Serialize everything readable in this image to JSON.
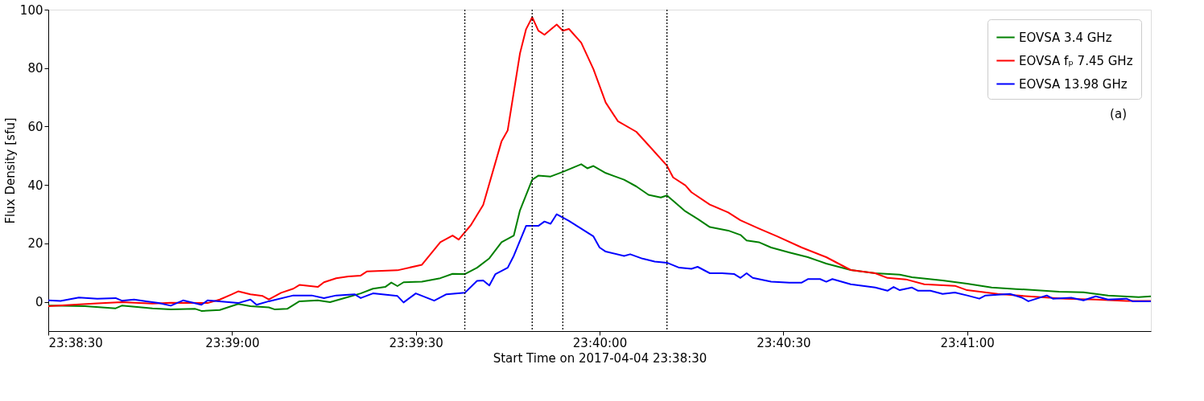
{
  "chart_data": {
    "type": "line",
    "xlabel": "Start Time on 2017-04-04 23:38:30",
    "ylabel": "Flux Density [sfu]",
    "xlim": [
      "2017-04-04T23:38:30",
      "2017-04-04T23:41:30"
    ],
    "xticks": [
      {
        "value": "2017-04-04T23:38:30",
        "label": "23:38:30"
      },
      {
        "value": "2017-04-04T23:39:00",
        "label": "23:39:00"
      },
      {
        "value": "2017-04-04T23:39:30",
        "label": "23:39:30"
      },
      {
        "value": "2017-04-04T23:40:00",
        "label": "23:40:00"
      },
      {
        "value": "2017-04-04T23:40:30",
        "label": "23:40:30"
      },
      {
        "value": "2017-04-04T23:41:00",
        "label": "23:41:00"
      }
    ],
    "ylim": [
      -10,
      100
    ],
    "yticks": [
      0,
      20,
      40,
      60,
      80,
      100
    ],
    "grid": false,
    "legend": "top right",
    "line_style": "solid",
    "annotations": [
      "(a)"
    ],
    "ref_lines": [
      {
        "axis": "x",
        "value": "2017-04-04T23:39:38",
        "color": "#000000",
        "line_style": "dotted"
      },
      {
        "axis": "x",
        "value": "2017-04-04T23:39:49",
        "color": "#000000",
        "line_style": "dotted"
      },
      {
        "axis": "x",
        "value": "2017-04-04T23:39:54",
        "color": "#000000",
        "line_style": "dotted"
      },
      {
        "axis": "x",
        "value": "2017-04-04T23:40:11",
        "color": "#000000",
        "line_style": "dotted"
      }
    ],
    "series": [
      {
        "name": "EOVSA 3.4 GHz",
        "color": "#008000",
        "x": [
          "2017-04-04T23:38:30",
          "2017-04-04T23:38:36",
          "2017-04-04T23:38:41",
          "2017-04-04T23:38:42",
          "2017-04-04T23:38:47",
          "2017-04-04T23:38:50",
          "2017-04-04T23:38:54",
          "2017-04-04T23:38:55",
          "2017-04-04T23:38:58",
          "2017-04-04T23:39:01",
          "2017-04-04T23:39:03",
          "2017-04-04T23:39:06",
          "2017-04-04T23:39:07",
          "2017-04-04T23:39:09",
          "2017-04-04T23:39:11",
          "2017-04-04T23:39:14",
          "2017-04-04T23:39:16",
          "2017-04-04T23:39:19",
          "2017-04-04T23:39:21",
          "2017-04-04T23:39:23",
          "2017-04-04T23:39:25",
          "2017-04-04T23:39:26",
          "2017-04-04T23:39:27",
          "2017-04-04T23:39:28",
          "2017-04-04T23:39:31",
          "2017-04-04T23:39:34",
          "2017-04-04T23:39:36",
          "2017-04-04T23:39:38",
          "2017-04-04T23:39:40",
          "2017-04-04T23:39:42",
          "2017-04-04T23:39:44",
          "2017-04-04T23:39:46",
          "2017-04-04T23:39:47",
          "2017-04-04T23:39:49",
          "2017-04-04T23:39:50",
          "2017-04-04T23:39:52",
          "2017-04-04T23:39:54",
          "2017-04-04T23:39:57",
          "2017-04-04T23:39:58",
          "2017-04-04T23:39:59",
          "2017-04-04T23:40:01",
          "2017-04-04T23:40:04",
          "2017-04-04T23:40:06",
          "2017-04-04T23:40:08",
          "2017-04-04T23:40:10",
          "2017-04-04T23:40:11",
          "2017-04-04T23:40:14",
          "2017-04-04T23:40:16",
          "2017-04-04T23:40:18",
          "2017-04-04T23:40:21",
          "2017-04-04T23:40:23",
          "2017-04-04T23:40:24",
          "2017-04-04T23:40:26",
          "2017-04-04T23:40:28",
          "2017-04-04T23:40:31",
          "2017-04-04T23:40:34",
          "2017-04-04T23:40:37",
          "2017-04-04T23:40:41",
          "2017-04-04T23:40:45",
          "2017-04-04T23:40:49",
          "2017-04-04T23:40:51",
          "2017-04-04T23:40:56",
          "2017-04-04T23:41:00",
          "2017-04-04T23:41:04",
          "2017-04-04T23:41:08",
          "2017-04-04T23:41:15",
          "2017-04-04T23:41:19",
          "2017-04-04T23:41:23",
          "2017-04-04T23:41:28",
          "2017-04-04T23:41:30"
        ],
        "values": [
          -1.3,
          -1.5,
          -2.2,
          -1.3,
          -2.2,
          -2.6,
          -2.4,
          -3.1,
          -2.8,
          -0.7,
          -1.5,
          -1.9,
          -2.6,
          -2.4,
          0.2,
          0.5,
          -0.1,
          1.7,
          2.9,
          4.5,
          5.1,
          6.6,
          5.4,
          6.7,
          6.9,
          8.1,
          9.6,
          9.5,
          11.7,
          14.9,
          20.4,
          22.7,
          31.3,
          41.8,
          43.2,
          42.9,
          44.5,
          47.1,
          45.7,
          46.5,
          44.1,
          41.8,
          39.5,
          36.6,
          35.7,
          36.4,
          31.0,
          28.4,
          25.6,
          24.4,
          22.9,
          21.0,
          20.4,
          18.6,
          16.9,
          15.3,
          13.1,
          10.9,
          9.8,
          9.3,
          8.4,
          7.3,
          6.2,
          4.9,
          4.4,
          3.5,
          3.3,
          2.2,
          1.6,
          1.9
        ]
      },
      {
        "name": "EOVSA fₚ 7.45 GHz",
        "color": "#ff0000",
        "x": [
          "2017-04-04T23:38:30",
          "2017-04-04T23:38:34",
          "2017-04-04T23:38:38",
          "2017-04-04T23:38:42",
          "2017-04-04T23:38:47",
          "2017-04-04T23:38:50",
          "2017-04-04T23:38:56",
          "2017-04-04T23:38:58",
          "2017-04-04T23:39:00",
          "2017-04-04T23:39:01",
          "2017-04-04T23:39:03",
          "2017-04-04T23:39:05",
          "2017-04-04T23:39:06",
          "2017-04-04T23:39:08",
          "2017-04-04T23:39:10",
          "2017-04-04T23:39:11",
          "2017-04-04T23:39:14",
          "2017-04-04T23:39:15",
          "2017-04-04T23:39:17",
          "2017-04-04T23:39:19",
          "2017-04-04T23:39:21",
          "2017-04-04T23:39:22",
          "2017-04-04T23:39:27",
          "2017-04-04T23:39:31",
          "2017-04-04T23:39:34",
          "2017-04-04T23:39:36",
          "2017-04-04T23:39:37",
          "2017-04-04T23:39:39",
          "2017-04-04T23:39:41",
          "2017-04-04T23:39:44",
          "2017-04-04T23:39:45",
          "2017-04-04T23:39:47",
          "2017-04-04T23:39:48",
          "2017-04-04T23:39:49",
          "2017-04-04T23:39:50",
          "2017-04-04T23:39:51",
          "2017-04-04T23:39:53",
          "2017-04-04T23:39:54",
          "2017-04-04T23:39:55",
          "2017-04-04T23:39:57",
          "2017-04-04T23:39:59",
          "2017-04-04T23:40:01",
          "2017-04-04T23:40:03",
          "2017-04-04T23:40:06",
          "2017-04-04T23:40:08",
          "2017-04-04T23:40:11",
          "2017-04-04T23:40:12",
          "2017-04-04T23:40:14",
          "2017-04-04T23:40:15",
          "2017-04-04T23:40:18",
          "2017-04-04T23:40:21",
          "2017-04-04T23:40:23",
          "2017-04-04T23:40:26",
          "2017-04-04T23:40:29",
          "2017-04-04T23:40:33",
          "2017-04-04T23:40:37",
          "2017-04-04T23:40:39",
          "2017-04-04T23:40:41",
          "2017-04-04T23:40:45",
          "2017-04-04T23:40:47",
          "2017-04-04T23:40:50",
          "2017-04-04T23:40:53",
          "2017-04-04T23:40:58",
          "2017-04-04T23:41:00",
          "2017-04-04T23:41:05",
          "2017-04-04T23:41:10",
          "2017-04-04T23:41:16",
          "2017-04-04T23:41:21",
          "2017-04-04T23:41:26",
          "2017-04-04T23:41:30"
        ],
        "values": [
          -1.5,
          -1.0,
          -0.5,
          -0.1,
          -0.6,
          -0.3,
          -0.4,
          0.8,
          2.6,
          3.6,
          2.6,
          2.0,
          0.8,
          3.1,
          4.5,
          5.8,
          5.1,
          6.7,
          8.1,
          8.7,
          9.0,
          10.4,
          10.8,
          12.7,
          20.4,
          22.7,
          21.3,
          26.3,
          33.2,
          55.0,
          58.7,
          85.0,
          93.3,
          97.4,
          92.8,
          91.4,
          94.9,
          92.8,
          93.4,
          88.7,
          79.6,
          68.2,
          61.8,
          58.2,
          53.6,
          46.6,
          42.6,
          39.9,
          37.5,
          33.3,
          30.6,
          27.9,
          25.1,
          22.4,
          18.6,
          15.3,
          13.1,
          10.9,
          9.8,
          8.2,
          7.7,
          6.0,
          5.5,
          4.0,
          2.7,
          1.9,
          1.1,
          0.8,
          0.3,
          0.3
        ]
      },
      {
        "name": "EOVSA 13.98 GHz",
        "color": "#0000ff",
        "x": [
          "2017-04-04T23:38:30",
          "2017-04-04T23:38:32",
          "2017-04-04T23:38:35",
          "2017-04-04T23:38:38",
          "2017-04-04T23:38:41",
          "2017-04-04T23:38:42",
          "2017-04-04T23:38:44",
          "2017-04-04T23:38:46",
          "2017-04-04T23:38:48",
          "2017-04-04T23:38:50",
          "2017-04-04T23:38:52",
          "2017-04-04T23:38:55",
          "2017-04-04T23:38:56",
          "2017-04-04T23:39:01",
          "2017-04-04T23:39:03",
          "2017-04-04T23:39:04",
          "2017-04-04T23:39:06",
          "2017-04-04T23:39:10",
          "2017-04-04T23:39:13",
          "2017-04-04T23:39:15",
          "2017-04-04T23:39:17",
          "2017-04-04T23:39:20",
          "2017-04-04T23:39:21",
          "2017-04-04T23:39:23",
          "2017-04-04T23:39:27",
          "2017-04-04T23:39:28",
          "2017-04-04T23:39:30",
          "2017-04-04T23:39:33",
          "2017-04-04T23:39:35",
          "2017-04-04T23:39:38",
          "2017-04-04T23:39:40",
          "2017-04-04T23:39:41",
          "2017-04-04T23:39:42",
          "2017-04-04T23:39:43",
          "2017-04-04T23:39:45",
          "2017-04-04T23:39:46",
          "2017-04-04T23:39:48",
          "2017-04-04T23:39:50",
          "2017-04-04T23:39:51",
          "2017-04-04T23:39:52",
          "2017-04-04T23:39:53",
          "2017-04-04T23:39:55",
          "2017-04-04T23:39:59",
          "2017-04-04T23:40:00",
          "2017-04-04T23:40:01",
          "2017-04-04T23:40:04",
          "2017-04-04T23:40:05",
          "2017-04-04T23:40:07",
          "2017-04-04T23:40:09",
          "2017-04-04T23:40:11",
          "2017-04-04T23:40:13",
          "2017-04-04T23:40:15",
          "2017-04-04T23:40:16",
          "2017-04-04T23:40:18",
          "2017-04-04T23:40:20",
          "2017-04-04T23:40:22",
          "2017-04-04T23:40:23",
          "2017-04-04T23:40:24",
          "2017-04-04T23:40:25",
          "2017-04-04T23:40:28",
          "2017-04-04T23:40:31",
          "2017-04-04T23:40:33",
          "2017-04-04T23:40:34",
          "2017-04-04T23:40:36",
          "2017-04-04T23:40:37",
          "2017-04-04T23:40:38",
          "2017-04-04T23:40:41",
          "2017-04-04T23:40:45",
          "2017-04-04T23:40:47",
          "2017-04-04T23:40:48",
          "2017-04-04T23:40:49",
          "2017-04-04T23:40:51",
          "2017-04-04T23:40:52",
          "2017-04-04T23:40:54",
          "2017-04-04T23:40:56",
          "2017-04-04T23:40:58",
          "2017-04-04T23:41:00",
          "2017-04-04T23:41:02",
          "2017-04-04T23:41:03",
          "2017-04-04T23:41:07",
          "2017-04-04T23:41:09",
          "2017-04-04T23:41:10",
          "2017-04-04T23:41:13",
          "2017-04-04T23:41:14",
          "2017-04-04T23:41:17",
          "2017-04-04T23:41:19",
          "2017-04-04T23:41:21",
          "2017-04-04T23:41:23",
          "2017-04-04T23:41:26",
          "2017-04-04T23:41:27",
          "2017-04-04T23:41:30"
        ],
        "values": [
          0.5,
          0.3,
          1.5,
          1.1,
          1.3,
          0.4,
          0.8,
          0.2,
          -0.4,
          -1.3,
          0.5,
          -1.0,
          0.5,
          -0.4,
          0.8,
          -1.0,
          0.2,
          2.2,
          2.2,
          1.3,
          2.2,
          2.6,
          1.3,
          2.9,
          2.0,
          -0.2,
          2.9,
          0.4,
          2.6,
          3.1,
          7.2,
          7.3,
          5.6,
          9.5,
          11.7,
          15.8,
          26.0,
          26.0,
          27.5,
          26.7,
          30.0,
          27.7,
          22.4,
          18.6,
          17.2,
          15.7,
          16.3,
          14.8,
          13.8,
          13.4,
          11.7,
          11.3,
          12.0,
          9.8,
          9.8,
          9.5,
          8.2,
          9.8,
          8.2,
          6.9,
          6.6,
          6.6,
          7.8,
          7.8,
          6.9,
          7.8,
          6.0,
          4.9,
          3.8,
          5.1,
          4.0,
          4.9,
          3.8,
          3.8,
          2.7,
          3.2,
          2.2,
          1.1,
          2.2,
          2.7,
          1.4,
          0.2,
          2.2,
          1.1,
          1.4,
          0.5,
          1.9,
          0.8,
          1.1,
          0.2,
          0.2
        ]
      }
    ]
  }
}
